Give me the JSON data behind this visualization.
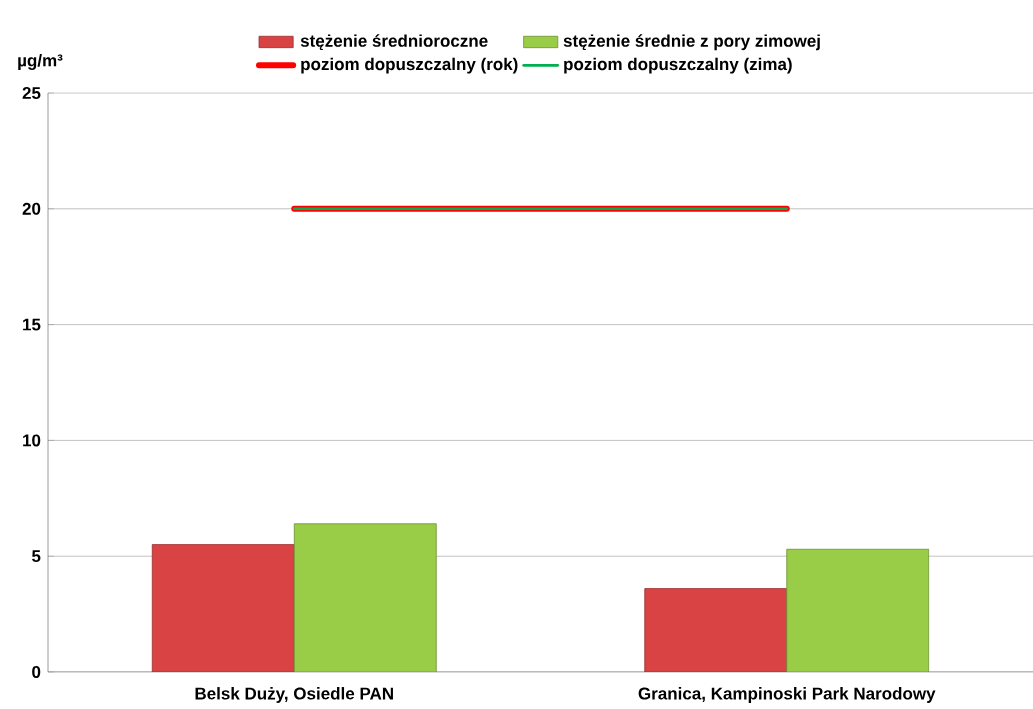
{
  "chart_data": {
    "type": "bar",
    "categories": [
      "Belsk Duży, Osiedle PAN",
      "Granica, Kampinoski Park Narodowy"
    ],
    "ylabel": "µg/m³",
    "ylim": [
      0,
      25
    ],
    "yticks": [
      0,
      5,
      10,
      15,
      20,
      25
    ],
    "grid": "y",
    "legend": "top",
    "series": [
      {
        "name": "stężenie średnioroczne",
        "color": "#d94343",
        "values": [
          5.5,
          3.6
        ]
      },
      {
        "name": "stężenie średnie z pory zimowej",
        "color": "#9acd47",
        "values": [
          6.4,
          5.3
        ]
      },
      {
        "name": "poziom dopuszczalny (rok)",
        "type": "line",
        "color": "#ff0000",
        "values": [
          20,
          20
        ]
      },
      {
        "name": "poziom dopuszczalny (zima)",
        "type": "line",
        "color": "#00b050",
        "values": [
          20,
          20
        ]
      }
    ]
  }
}
